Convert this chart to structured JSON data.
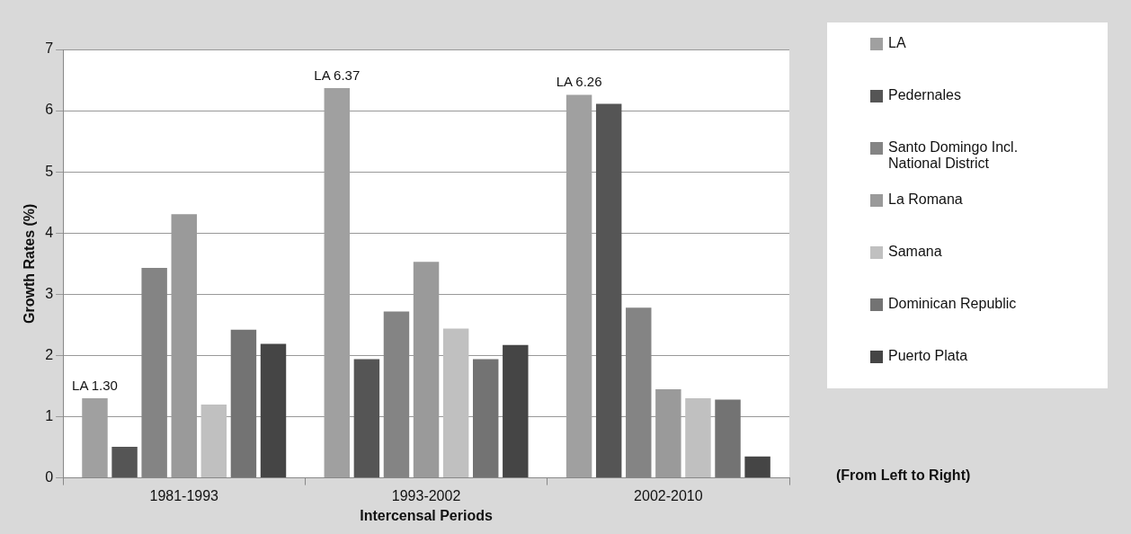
{
  "chart_data": {
    "type": "bar",
    "xlabel": "Intercensal Periods",
    "ylabel": "Growth Rates (%)",
    "categories": [
      "1981-1993",
      "1993-2002",
      "2002-2010"
    ],
    "series": [
      {
        "name": "LA",
        "color": "#a0a0a0",
        "values": [
          1.3,
          6.37,
          6.26
        ],
        "value_labels": [
          "LA 1.30",
          "LA 6.37",
          "LA 6.26"
        ]
      },
      {
        "name": "Pedernales",
        "color": "#555555",
        "values": [
          0.51,
          1.94,
          6.11
        ]
      },
      {
        "name": "Santo Domingo Incl. National District",
        "color": "#848484",
        "values": [
          3.43,
          2.72,
          2.78
        ]
      },
      {
        "name": "La Romana",
        "color": "#9a9a9a",
        "values": [
          4.31,
          3.53,
          1.45
        ]
      },
      {
        "name": "Samana",
        "color": "#c0c0c0",
        "values": [
          1.2,
          2.44,
          1.3
        ]
      },
      {
        "name": "Dominican Republic",
        "color": "#737373",
        "values": [
          2.42,
          1.94,
          1.28
        ]
      },
      {
        "name": "Puerto Plata",
        "color": "#454545",
        "values": [
          2.19,
          2.17,
          0.35
        ]
      }
    ],
    "ylim": [
      0,
      7
    ],
    "yticks": [
      0,
      1,
      2,
      3,
      4,
      5,
      6,
      7
    ],
    "grid": "y",
    "legend": "right",
    "annotations": [
      "(From Left to Right)"
    ]
  }
}
